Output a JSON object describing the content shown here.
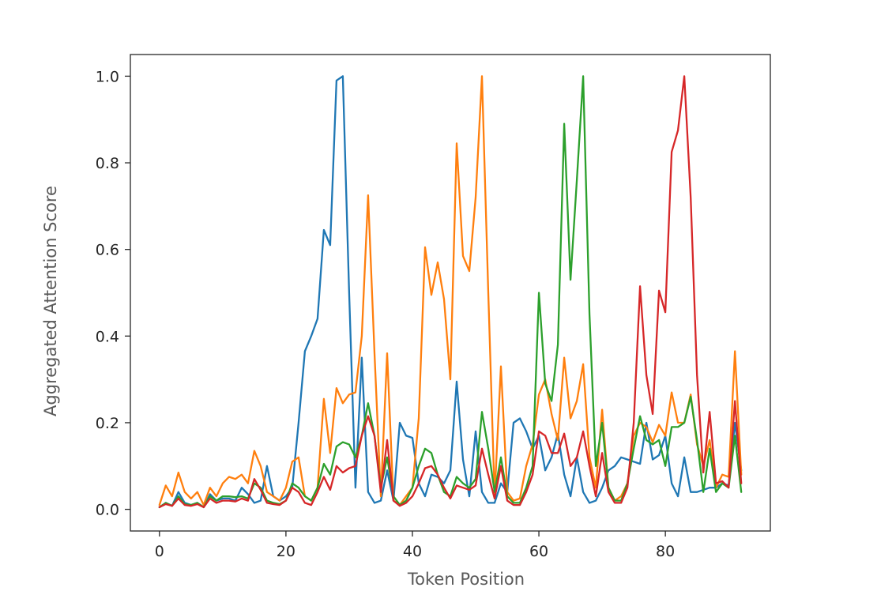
{
  "chart_data": {
    "type": "line",
    "title": "",
    "xlabel": "Token Position",
    "ylabel": "Aggregated Attention Score",
    "xlim": [
      -4.6,
      96.6
    ],
    "ylim": [
      -0.05,
      1.05
    ],
    "xticks": [
      0,
      20,
      40,
      60,
      80
    ],
    "yticks": [
      0.0,
      0.2,
      0.4,
      0.6,
      0.8,
      1.0
    ],
    "ytick_labels": [
      "0.0",
      "0.2",
      "0.4",
      "0.6",
      "0.8",
      "1.0"
    ],
    "grid": false,
    "legend": "none",
    "series": [
      {
        "color": "#1f77b4",
        "x": [
          0,
          1,
          2,
          3,
          4,
          5,
          6,
          7,
          8,
          9,
          10,
          11,
          12,
          13,
          14,
          15,
          16,
          17,
          18,
          19,
          20,
          21,
          22,
          23,
          24,
          25,
          26,
          27,
          28,
          29,
          30,
          31,
          32,
          33,
          34,
          35,
          36,
          37,
          38,
          39,
          40,
          41,
          42,
          43,
          44,
          45,
          46,
          47,
          48,
          49,
          50,
          51,
          52,
          53,
          54,
          55,
          56,
          57,
          58,
          59,
          60,
          61,
          62,
          63,
          64,
          65,
          66,
          67,
          68,
          69,
          70,
          71,
          72,
          73,
          74,
          75,
          76,
          77,
          78,
          79,
          80,
          81,
          82,
          83,
          84,
          85,
          86,
          87,
          88,
          89,
          90,
          91,
          92
        ],
        "y": [
          0.005,
          0.015,
          0.008,
          0.04,
          0.015,
          0.01,
          0.015,
          0.005,
          0.035,
          0.02,
          0.025,
          0.025,
          0.02,
          0.05,
          0.035,
          0.015,
          0.02,
          0.1,
          0.03,
          0.02,
          0.03,
          0.05,
          0.2,
          0.365,
          0.4,
          0.44,
          0.645,
          0.61,
          0.99,
          1.0,
          0.5,
          0.05,
          0.35,
          0.04,
          0.015,
          0.02,
          0.09,
          0.02,
          0.2,
          0.17,
          0.165,
          0.06,
          0.03,
          0.08,
          0.075,
          0.06,
          0.09,
          0.295,
          0.115,
          0.03,
          0.18,
          0.04,
          0.015,
          0.015,
          0.06,
          0.04,
          0.2,
          0.21,
          0.18,
          0.14,
          0.17,
          0.09,
          0.12,
          0.175,
          0.08,
          0.03,
          0.12,
          0.04,
          0.015,
          0.02,
          0.05,
          0.09,
          0.1,
          0.12,
          0.115,
          0.11,
          0.105,
          0.2,
          0.115,
          0.125,
          0.17,
          0.06,
          0.03,
          0.12,
          0.04,
          0.04,
          0.045,
          0.05,
          0.05,
          0.06,
          0.055,
          0.2,
          0.09
        ]
      },
      {
        "color": "#ff7f0e",
        "x": [
          0,
          1,
          2,
          3,
          4,
          5,
          6,
          7,
          8,
          9,
          10,
          11,
          12,
          13,
          14,
          15,
          16,
          17,
          18,
          19,
          20,
          21,
          22,
          23,
          24,
          25,
          26,
          27,
          28,
          29,
          30,
          31,
          32,
          33,
          34,
          35,
          36,
          37,
          38,
          39,
          40,
          41,
          42,
          43,
          44,
          45,
          46,
          47,
          48,
          49,
          50,
          51,
          52,
          53,
          54,
          55,
          56,
          57,
          58,
          59,
          60,
          61,
          62,
          63,
          64,
          65,
          66,
          67,
          68,
          69,
          70,
          71,
          72,
          73,
          74,
          75,
          76,
          77,
          78,
          79,
          80,
          81,
          82,
          83,
          84,
          85,
          86,
          87,
          88,
          89,
          90,
          91,
          92
        ],
        "y": [
          0.01,
          0.055,
          0.03,
          0.085,
          0.04,
          0.025,
          0.04,
          0.01,
          0.05,
          0.03,
          0.06,
          0.075,
          0.07,
          0.08,
          0.06,
          0.135,
          0.1,
          0.04,
          0.03,
          0.02,
          0.05,
          0.11,
          0.12,
          0.03,
          0.02,
          0.05,
          0.255,
          0.13,
          0.28,
          0.245,
          0.265,
          0.27,
          0.4,
          0.725,
          0.36,
          0.03,
          0.36,
          0.02,
          0.01,
          0.03,
          0.05,
          0.21,
          0.605,
          0.495,
          0.57,
          0.485,
          0.3,
          0.845,
          0.585,
          0.55,
          0.72,
          1.0,
          0.5,
          0.03,
          0.33,
          0.04,
          0.02,
          0.025,
          0.1,
          0.15,
          0.265,
          0.3,
          0.22,
          0.16,
          0.35,
          0.21,
          0.25,
          0.335,
          0.12,
          0.05,
          0.23,
          0.05,
          0.02,
          0.03,
          0.06,
          0.17,
          0.2,
          0.19,
          0.155,
          0.195,
          0.17,
          0.27,
          0.2,
          0.2,
          0.265,
          0.15,
          0.1,
          0.16,
          0.05,
          0.08,
          0.075,
          0.365,
          0.08
        ]
      },
      {
        "color": "#2ca02c",
        "x": [
          0,
          1,
          2,
          3,
          4,
          5,
          6,
          7,
          8,
          9,
          10,
          11,
          12,
          13,
          14,
          15,
          16,
          17,
          18,
          19,
          20,
          21,
          22,
          23,
          24,
          25,
          26,
          27,
          28,
          29,
          30,
          31,
          32,
          33,
          34,
          35,
          36,
          37,
          38,
          39,
          40,
          41,
          42,
          43,
          44,
          45,
          46,
          47,
          48,
          49,
          50,
          51,
          52,
          53,
          54,
          55,
          56,
          57,
          58,
          59,
          60,
          61,
          62,
          63,
          64,
          65,
          66,
          67,
          68,
          69,
          70,
          71,
          72,
          73,
          74,
          75,
          76,
          77,
          78,
          79,
          80,
          81,
          82,
          83,
          84,
          85,
          86,
          87,
          88,
          89,
          90,
          91,
          92
        ],
        "y": [
          0.005,
          0.015,
          0.008,
          0.03,
          0.012,
          0.01,
          0.015,
          0.005,
          0.03,
          0.02,
          0.03,
          0.03,
          0.028,
          0.03,
          0.025,
          0.06,
          0.05,
          0.02,
          0.015,
          0.012,
          0.02,
          0.06,
          0.05,
          0.03,
          0.02,
          0.05,
          0.105,
          0.08,
          0.145,
          0.155,
          0.15,
          0.12,
          0.17,
          0.245,
          0.17,
          0.05,
          0.12,
          0.03,
          0.01,
          0.02,
          0.05,
          0.1,
          0.14,
          0.13,
          0.08,
          0.04,
          0.03,
          0.075,
          0.06,
          0.05,
          0.07,
          0.225,
          0.14,
          0.04,
          0.12,
          0.03,
          0.015,
          0.015,
          0.05,
          0.1,
          0.5,
          0.29,
          0.25,
          0.38,
          0.89,
          0.53,
          0.76,
          1.0,
          0.45,
          0.1,
          0.2,
          0.05,
          0.02,
          0.02,
          0.06,
          0.14,
          0.215,
          0.16,
          0.15,
          0.16,
          0.1,
          0.19,
          0.19,
          0.2,
          0.26,
          0.16,
          0.04,
          0.14,
          0.04,
          0.06,
          0.05,
          0.17,
          0.04
        ]
      },
      {
        "color": "#d62728",
        "x": [
          0,
          1,
          2,
          3,
          4,
          5,
          6,
          7,
          8,
          9,
          10,
          11,
          12,
          13,
          14,
          15,
          16,
          17,
          18,
          19,
          20,
          21,
          22,
          23,
          24,
          25,
          26,
          27,
          28,
          29,
          30,
          31,
          32,
          33,
          34,
          35,
          36,
          37,
          38,
          39,
          40,
          41,
          42,
          43,
          44,
          45,
          46,
          47,
          48,
          49,
          50,
          51,
          52,
          53,
          54,
          55,
          56,
          57,
          58,
          59,
          60,
          61,
          62,
          63,
          64,
          65,
          66,
          67,
          68,
          69,
          70,
          71,
          72,
          73,
          74,
          75,
          76,
          77,
          78,
          79,
          80,
          81,
          82,
          83,
          84,
          85,
          86,
          87,
          88,
          89,
          90,
          91,
          92
        ],
        "y": [
          0.005,
          0.012,
          0.008,
          0.025,
          0.01,
          0.008,
          0.012,
          0.005,
          0.025,
          0.015,
          0.02,
          0.02,
          0.018,
          0.025,
          0.02,
          0.07,
          0.045,
          0.015,
          0.012,
          0.01,
          0.02,
          0.05,
          0.04,
          0.015,
          0.01,
          0.04,
          0.075,
          0.045,
          0.1,
          0.085,
          0.095,
          0.1,
          0.17,
          0.215,
          0.17,
          0.04,
          0.16,
          0.02,
          0.008,
          0.015,
          0.03,
          0.06,
          0.095,
          0.1,
          0.08,
          0.05,
          0.025,
          0.055,
          0.05,
          0.045,
          0.055,
          0.14,
          0.08,
          0.025,
          0.1,
          0.02,
          0.01,
          0.01,
          0.04,
          0.08,
          0.18,
          0.17,
          0.13,
          0.13,
          0.175,
          0.1,
          0.12,
          0.18,
          0.1,
          0.03,
          0.13,
          0.04,
          0.015,
          0.015,
          0.05,
          0.2,
          0.515,
          0.31,
          0.22,
          0.505,
          0.455,
          0.825,
          0.875,
          1.0,
          0.72,
          0.31,
          0.085,
          0.225,
          0.06,
          0.065,
          0.05,
          0.25,
          0.06
        ]
      }
    ]
  }
}
